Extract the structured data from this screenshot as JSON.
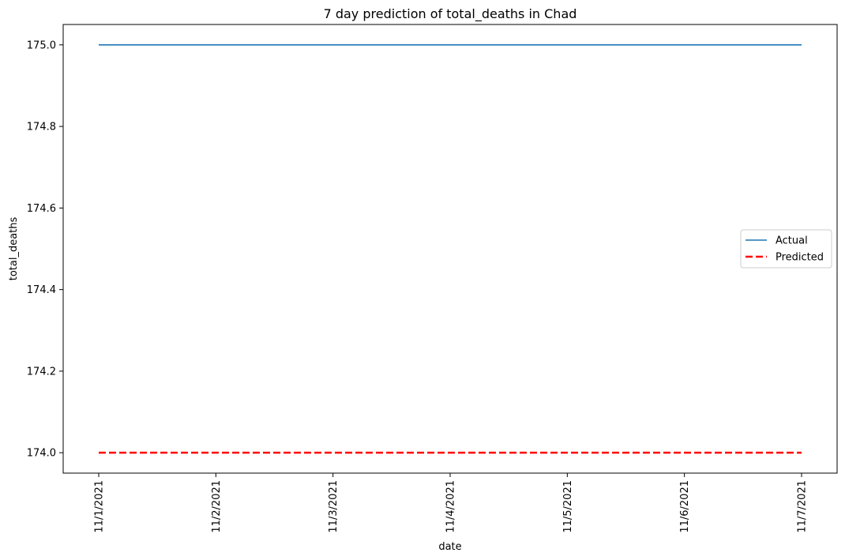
{
  "chart_data": {
    "type": "line",
    "title": "7 day prediction of total_deaths in Chad",
    "xlabel": "date",
    "ylabel": "total_deaths",
    "categories": [
      "11/1/2021",
      "11/2/2021",
      "11/3/2021",
      "11/4/2021",
      "11/5/2021",
      "11/6/2021",
      "11/7/2021"
    ],
    "yticks": [
      "174.0",
      "174.2",
      "174.4",
      "174.6",
      "174.8",
      "175.0"
    ],
    "ylim": [
      173.95,
      175.05
    ],
    "series": [
      {
        "name": "Actual",
        "values": [
          175,
          175,
          175,
          175,
          175,
          175,
          175
        ],
        "color": "#1f77b4",
        "style": "solid"
      },
      {
        "name": "Predicted",
        "values": [
          174,
          174,
          174,
          174,
          174,
          174,
          174
        ],
        "color": "#ff0000",
        "style": "dashed"
      }
    ],
    "legend": "center-right",
    "grid": false
  }
}
